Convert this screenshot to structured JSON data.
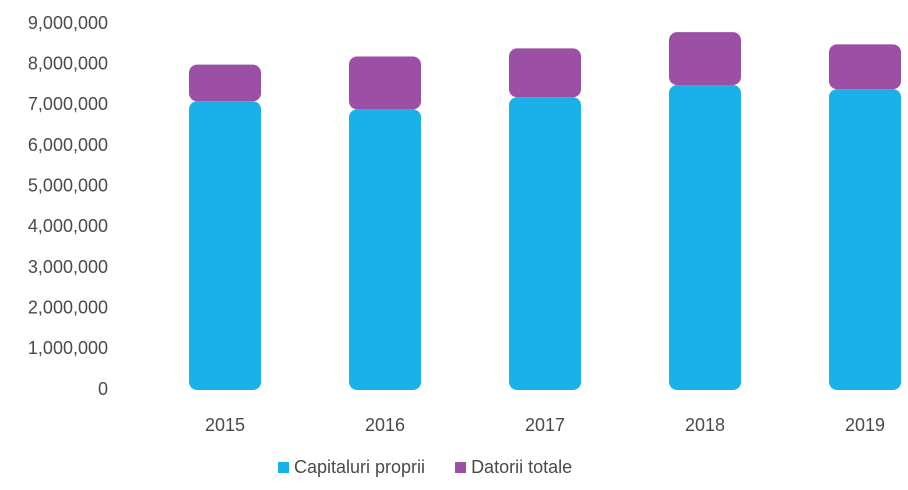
{
  "chart_data": {
    "type": "stacked_bar",
    "categories": [
      "2015",
      "2016",
      "2017",
      "2018",
      "2019"
    ],
    "series": [
      {
        "name": "Capitaluri proprii",
        "color": "#1ab0e8",
        "values": [
          7100000,
          6900000,
          7200000,
          7500000,
          7400000
        ]
      },
      {
        "name": "Datorii totale",
        "color": "#9b4fa5",
        "values": [
          900000,
          1300000,
          1200000,
          1300000,
          1100000
        ]
      }
    ],
    "ylim": [
      0,
      9000000
    ],
    "yticks": [
      0,
      {
        "value": 1000000,
        "label": "1,000,000"
      },
      {
        "value": 2000000,
        "label": "2,000,000"
      },
      {
        "value": 3000000,
        "label": "3,000,000"
      },
      {
        "value": 4000000,
        "label": "4,000,000"
      },
      {
        "value": 5000000,
        "label": "5,000,000"
      },
      {
        "value": 6000000,
        "label": "6,000,000"
      },
      {
        "value": 7000000,
        "label": "7,000,000"
      },
      {
        "value": 8000000,
        "label": "8,000,000"
      },
      {
        "value": 9000000,
        "label": "9,000,000"
      }
    ],
    "grid": false,
    "legend": "bottom"
  }
}
